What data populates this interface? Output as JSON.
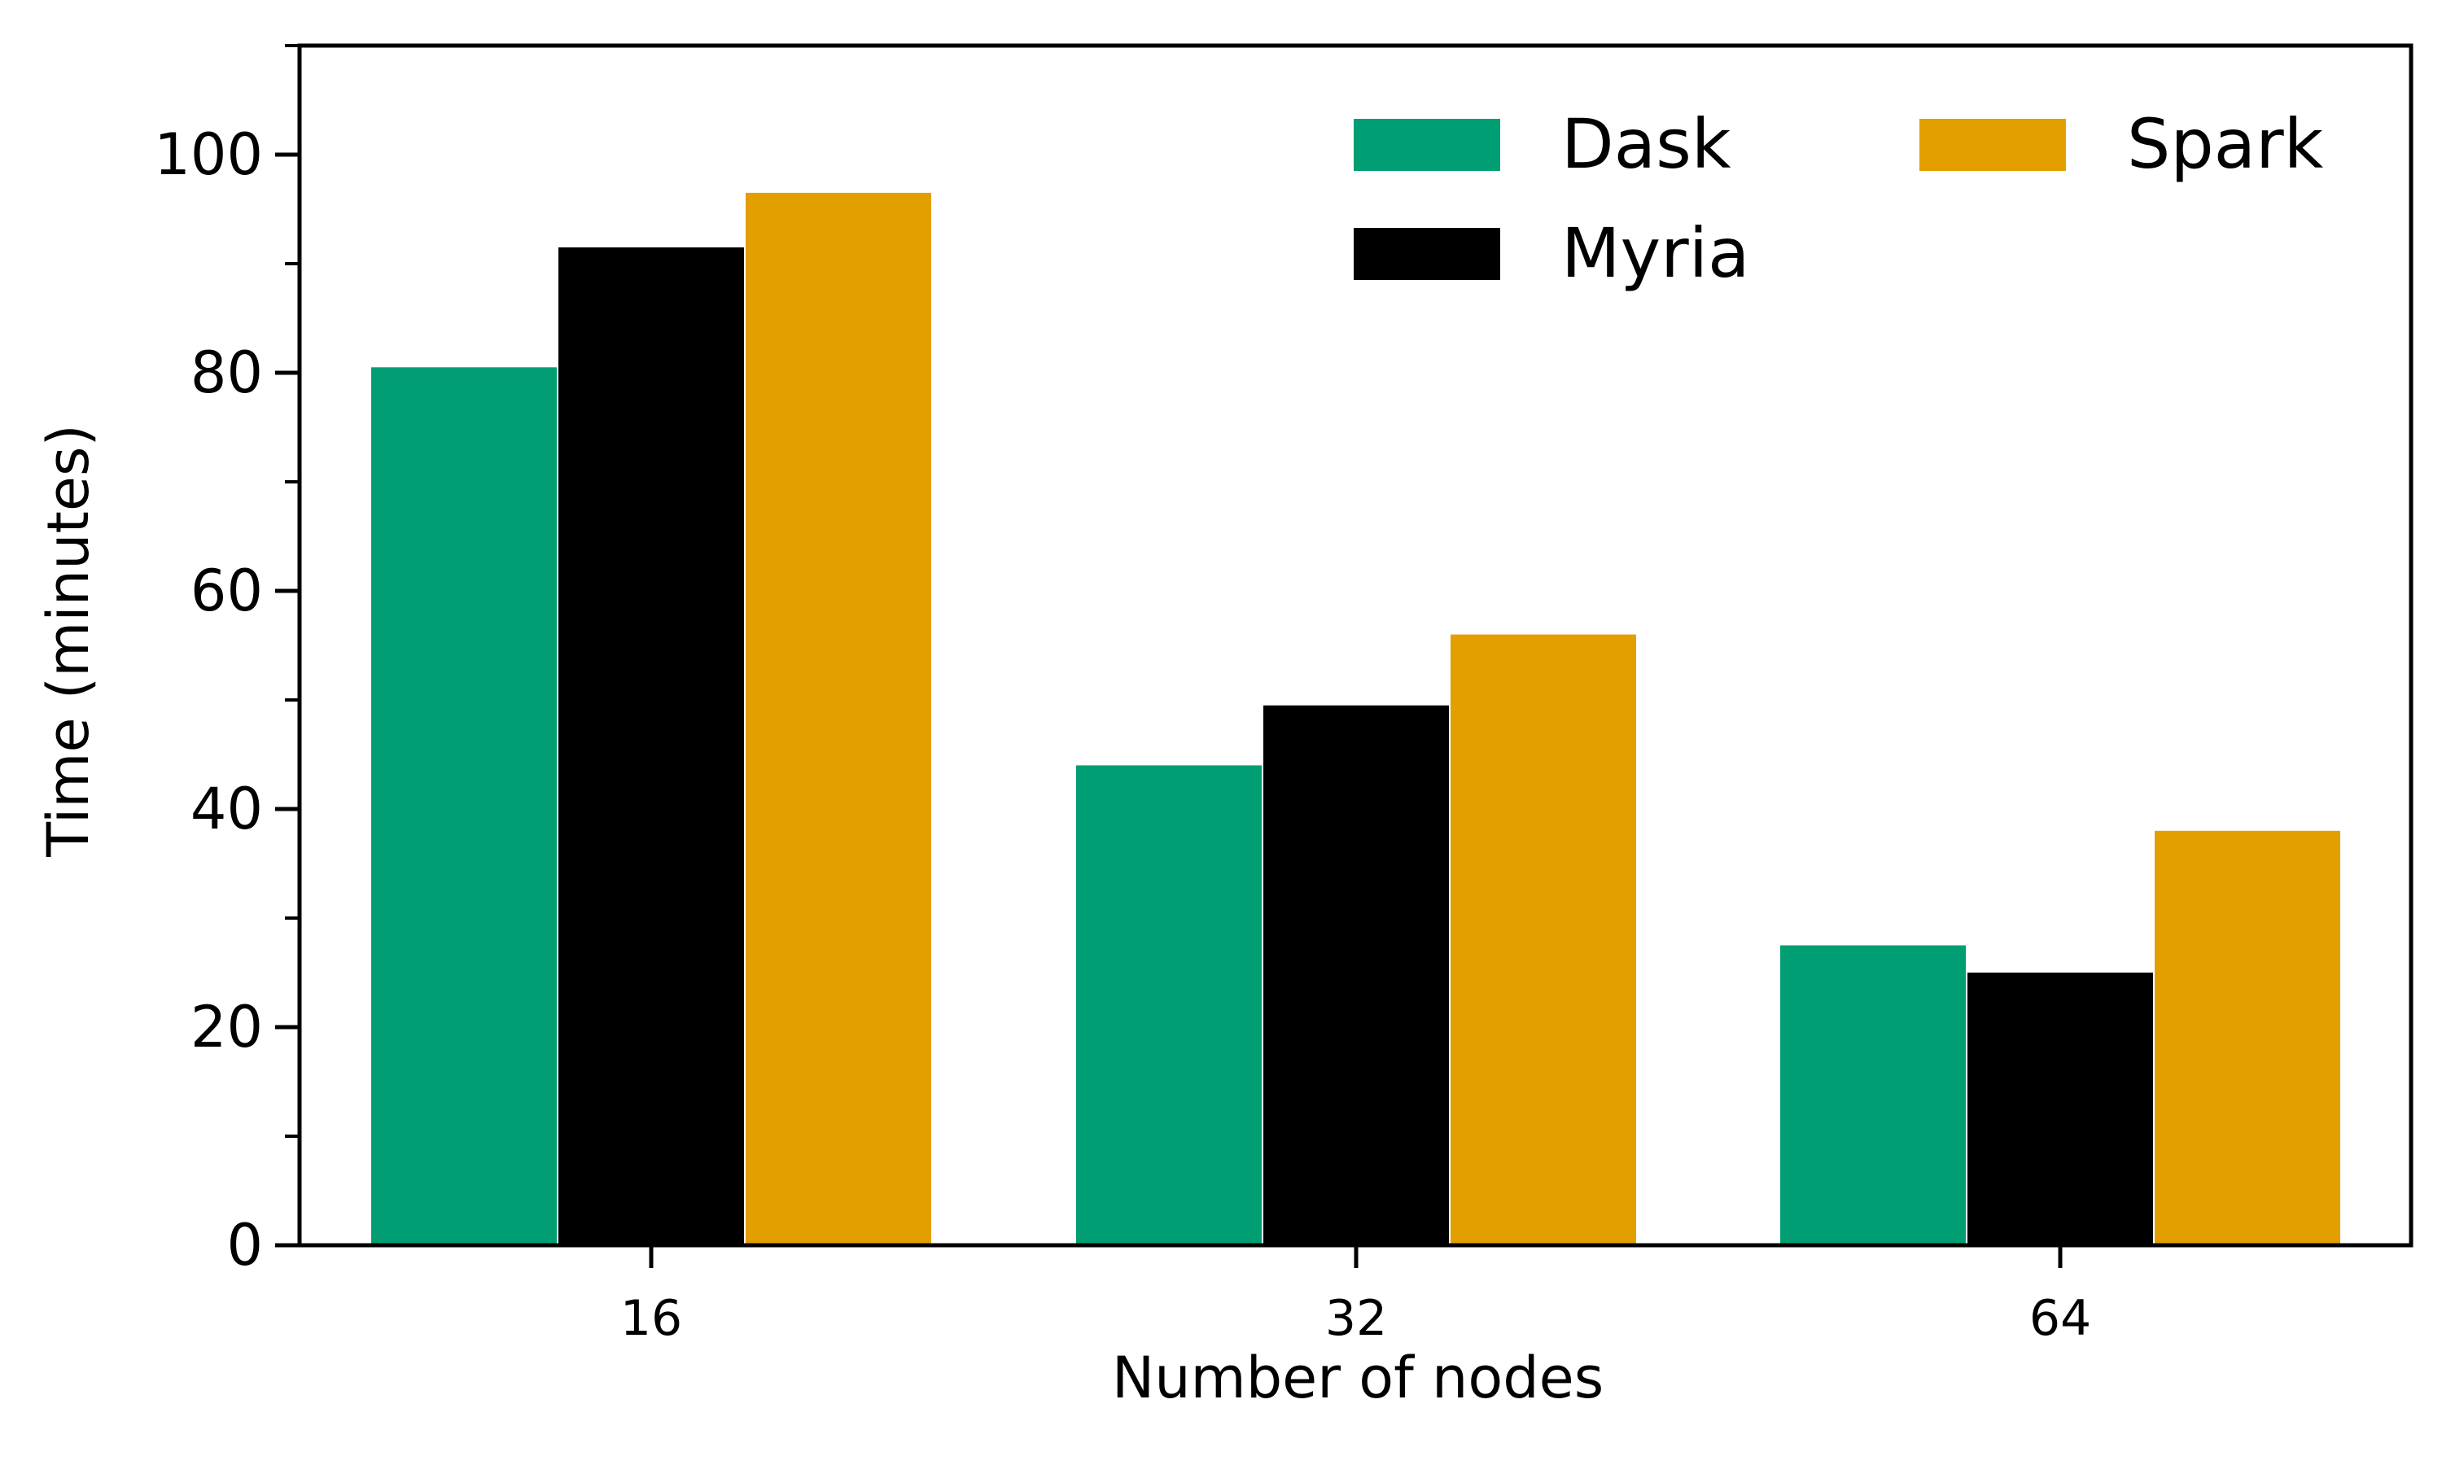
{
  "chart_data": {
    "type": "bar",
    "title": "",
    "xlabel": "Number of nodes",
    "ylabel": "Time (minutes)",
    "categories": [
      "16",
      "32",
      "64"
    ],
    "series": [
      {
        "name": "Dask",
        "color": "#029e73",
        "values": [
          80.5,
          44.0,
          27.5
        ]
      },
      {
        "name": "Myria",
        "color": "#000000",
        "values": [
          91.5,
          49.5,
          25.0
        ]
      },
      {
        "name": "Spark",
        "color": "#e39f00",
        "values": [
          96.5,
          56.0,
          38.0
        ]
      }
    ],
    "ylim": [
      0,
      110
    ],
    "yticks": [
      0,
      20,
      40,
      60,
      80,
      100
    ],
    "yticks_minor": [
      10,
      30,
      50,
      70,
      90,
      110
    ],
    "grid": false,
    "legend": {
      "placement": "top-right",
      "columns": 2,
      "order": [
        "Dask",
        "Myria",
        "Spark"
      ]
    }
  }
}
